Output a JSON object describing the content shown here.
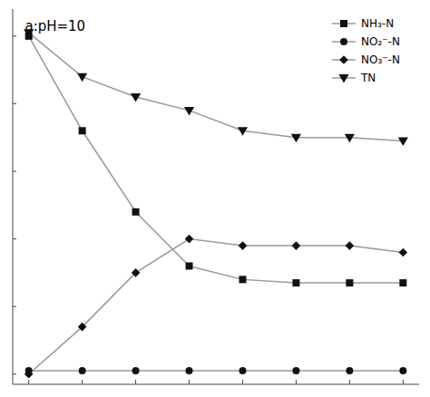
{
  "chart_data": {
    "type": "line",
    "title": "a:pH=10",
    "x": [
      0,
      1,
      2,
      3,
      4,
      5,
      6,
      7
    ],
    "series": [
      {
        "name": "NH₃-N",
        "color": "#999999",
        "marker": "square",
        "values": [
          100,
          72,
          48,
          32,
          28,
          27,
          27,
          27
        ]
      },
      {
        "name": "NO₂⁻-N",
        "color": "#999999",
        "marker": "circle",
        "values": [
          1,
          1,
          1,
          1,
          1,
          1,
          1,
          1
        ]
      },
      {
        "name": "NO₃⁻-N",
        "color": "#999999",
        "marker": "diamond",
        "values": [
          0,
          14,
          30,
          40,
          38,
          38,
          38,
          36
        ]
      },
      {
        "name": "TN",
        "color": "#999999",
        "marker": "triangle-down",
        "values": [
          101,
          88,
          82,
          78,
          72,
          70,
          70,
          69
        ]
      }
    ],
    "color": "#111111",
    "xlim": [
      -0.3,
      7.3
    ],
    "ylim": [
      -3,
      108
    ],
    "xticks": [
      0,
      1,
      2,
      3,
      4,
      5,
      6,
      7
    ],
    "yticks": [
      0,
      20,
      40,
      60,
      80,
      100
    ],
    "tick_labels": false,
    "grid": false,
    "legend": "upper right"
  }
}
